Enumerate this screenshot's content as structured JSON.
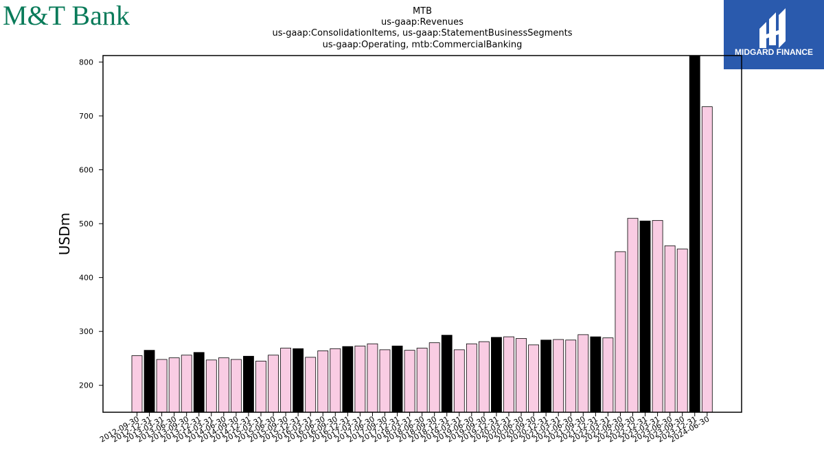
{
  "brand": {
    "bank_logo_text": "M&T Bank",
    "bank_color": "#0a7b5a",
    "sponsor_logo_text": "MIDGARD FINANCE",
    "sponsor_color": "#2a5aad"
  },
  "chart_data": {
    "type": "bar",
    "title_lines": [
      "MTB",
      "us-gaap:Revenues",
      "us-gaap:ConsolidationItems, us-gaap:StatementBusinessSegments",
      "us-gaap:Operating, mtb:CommercialBanking"
    ],
    "xlabel": "",
    "ylabel": "USDm",
    "ylim": [
      150,
      812
    ],
    "yticks": [
      200,
      300,
      400,
      500,
      600,
      700,
      800
    ],
    "grid": false,
    "colors": {
      "quarter": "#f9cce3",
      "year_end": "#000000",
      "edge": "#000000"
    },
    "categories": [
      "2012-09-30",
      "2012-12-31",
      "2013-03-31",
      "2013-06-30",
      "2013-09-30",
      "2013-12-31",
      "2014-03-31",
      "2014-06-30",
      "2014-09-30",
      "2014-12-31",
      "2015-03-31",
      "2015-06-30",
      "2015-09-30",
      "2015-12-31",
      "2016-03-31",
      "2016-06-30",
      "2016-09-30",
      "2016-12-31",
      "2017-03-31",
      "2017-06-30",
      "2017-09-30",
      "2017-12-31",
      "2018-03-31",
      "2018-06-30",
      "2018-09-30",
      "2018-12-31",
      "2019-03-31",
      "2019-06-30",
      "2019-09-30",
      "2019-12-31",
      "2020-03-31",
      "2020-06-30",
      "2020-09-30",
      "2020-12-31",
      "2021-03-31",
      "2021-06-30",
      "2021-09-30",
      "2021-12-31",
      "2022-03-31",
      "2022-06-30",
      "2022-09-30",
      "2022-12-31",
      "2023-03-31",
      "2023-06-30",
      "2023-09-30",
      "2023-12-31",
      "2024-06-30"
    ],
    "values": [
      255,
      265,
      248,
      251,
      256,
      261,
      247,
      251,
      248,
      254,
      245,
      256,
      269,
      268,
      252,
      264,
      268,
      272,
      273,
      277,
      266,
      273,
      265,
      269,
      279,
      293,
      266,
      277,
      281,
      289,
      290,
      287,
      275,
      284,
      285,
      284,
      294,
      290,
      288,
      448,
      510,
      505,
      506,
      459,
      453,
      812,
      717
    ],
    "year_end": [
      false,
      true,
      false,
      false,
      false,
      true,
      false,
      false,
      false,
      true,
      false,
      false,
      false,
      true,
      false,
      false,
      false,
      true,
      false,
      false,
      false,
      true,
      false,
      false,
      false,
      true,
      false,
      false,
      false,
      true,
      false,
      false,
      false,
      true,
      false,
      false,
      false,
      true,
      false,
      false,
      false,
      true,
      false,
      false,
      false,
      true,
      false
    ]
  }
}
